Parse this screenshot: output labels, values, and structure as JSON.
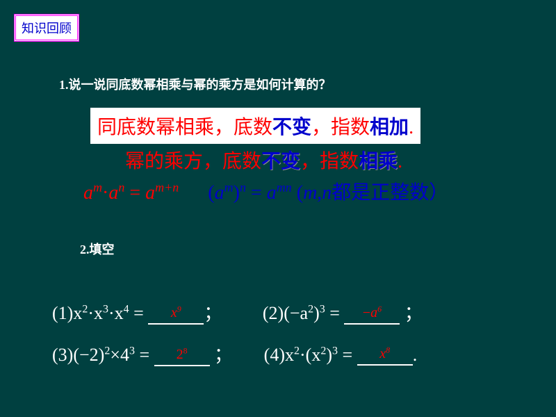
{
  "header": "知识回顾",
  "q1": "1.说一说同底数幂相乘与幂的乘方是如何计算的？",
  "rule1": {
    "p1": "同底数幂相乘，底数",
    "p2": "不变",
    "p3": "，指数",
    "p4": "相加",
    "p5": "."
  },
  "rule2": {
    "p1": "幂的乘方，底数",
    "p2": "不变",
    "p3": "，指数",
    "p4": "相乘",
    "p5": "."
  },
  "formula": {
    "left_base1": "a",
    "left_exp1": "m",
    "left_op": "·",
    "left_base2": "a",
    "left_exp2": "n",
    "eq": "=",
    "left_res_base": "a",
    "left_res_exp": "m+n",
    "right_open": "(",
    "right_base": "a",
    "right_inner_exp": "m",
    "right_close": ")",
    "right_outer_exp": "n",
    "right_res_base": "a",
    "right_res_exp": "mn",
    "cond_open": "(",
    "cond_m": "m",
    "cond_comma": ",",
    "cond_n": "n",
    "cond_text": "都是正整数）"
  },
  "q2": "2.填空",
  "p": {
    "p1_label": "(1)",
    "p1_expr_a": "x",
    "p1_e1": "2",
    "p1_dot": "·",
    "p1_e2": "3",
    "p1_e3": "4",
    "p1_ans": "x",
    "p1_ans_exp": "9",
    "p2_label": "(2)",
    "p2_open": "(",
    "p2_neg": "−",
    "p2_a": "a",
    "p2_e1": "2",
    "p2_close": ")",
    "p2_e2": "3",
    "p2_ans_neg": "−",
    "p2_ans": "a",
    "p2_ans_exp": "6",
    "p3_label": "(3)",
    "p3_open": "(−2)",
    "p3_e1": "2",
    "p3_times": "×",
    "p3_b": "4",
    "p3_e2": "3",
    "p3_ans": "2",
    "p3_ans_exp": "8",
    "p4_label": "(4)",
    "p4_x": "x",
    "p4_e1": "2",
    "p4_dot": "·",
    "p4_open": "(",
    "p4_x2": "x",
    "p4_e2": "2",
    "p4_close": ")",
    "p4_e3": "3",
    "p4_ans": "x",
    "p4_ans_exp": "8",
    "semi": "；",
    "period": "."
  }
}
